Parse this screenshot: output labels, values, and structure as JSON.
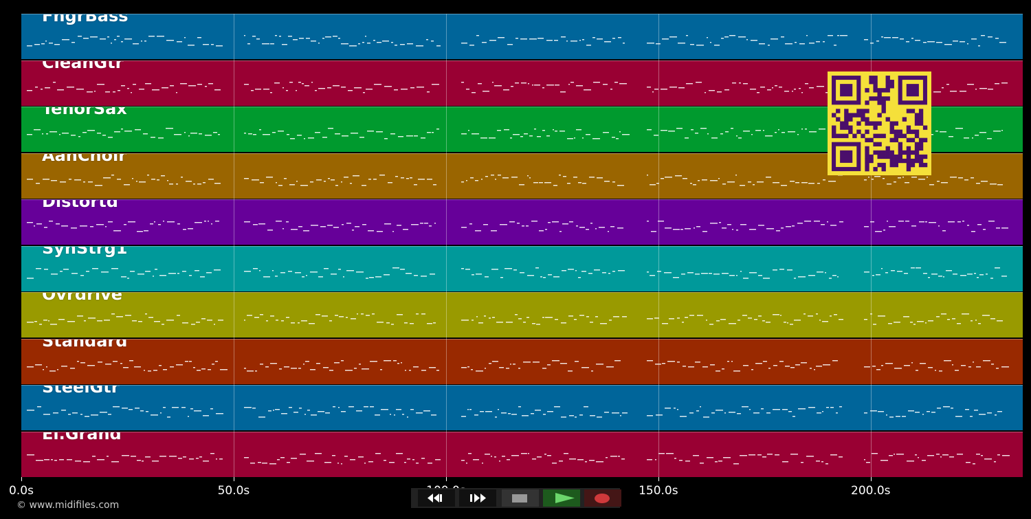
{
  "tracks": [
    {
      "name": "FngrBass",
      "color": "#00659a"
    },
    {
      "name": "CleanGtr",
      "color": "#990033"
    },
    {
      "name": "TenorSax",
      "color": "#009a2e"
    },
    {
      "name": "AahChoir",
      "color": "#9a6500"
    },
    {
      "name": "Distortd",
      "color": "#660099"
    },
    {
      "name": "SynStrg1",
      "color": "#00999a"
    },
    {
      "name": "Ovrdrive",
      "color": "#999a00"
    },
    {
      "name": "Standard",
      "color": "#992900"
    },
    {
      "name": "SteelGtr",
      "color": "#00659a"
    },
    {
      "name": "El.Grand",
      "color": "#990033"
    }
  ],
  "timeline": {
    "ticks": [
      "0.0s",
      "50.0s",
      "100.0s",
      "150.0s",
      "200.0s"
    ],
    "tick_seconds": [
      0,
      50,
      100,
      150,
      200
    ],
    "max_seconds": 235.8
  },
  "copyright": "© www.midifiles.com",
  "transport": {
    "buttons": [
      {
        "name": "rewind",
        "icon": "rewind-icon"
      },
      {
        "name": "fast-forward",
        "icon": "fast-forward-icon"
      },
      {
        "name": "stop",
        "icon": "stop-icon"
      },
      {
        "name": "play",
        "icon": "play-icon"
      },
      {
        "name": "record",
        "icon": "record-icon"
      }
    ]
  },
  "overlay": {
    "icon": "qr-code-icon"
  }
}
